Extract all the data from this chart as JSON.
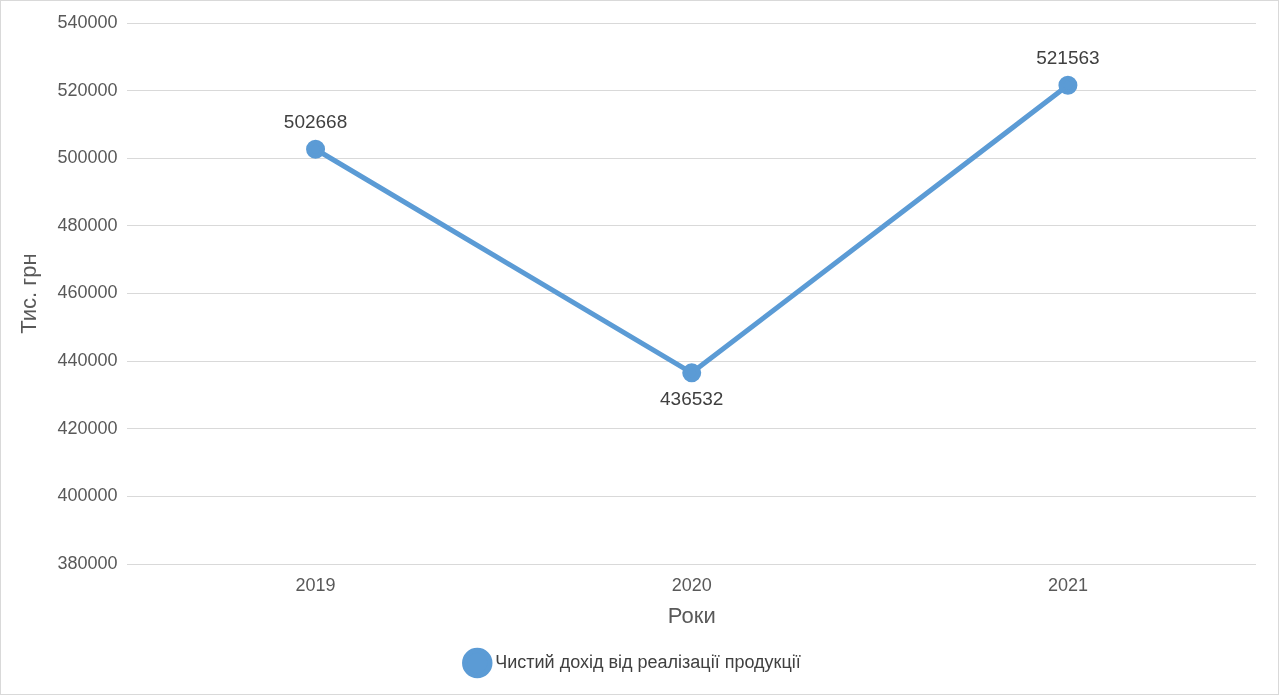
{
  "chart_data": {
    "type": "line",
    "xlabel": "Роки",
    "ylabel": "Тис. грн",
    "categories": [
      "2019",
      "2020",
      "2021"
    ],
    "series": [
      {
        "name": "Чистий дохід від реалізації продукції",
        "color": "#5b9bd5",
        "values": [
          502668,
          436532,
          521563
        ]
      }
    ],
    "ylim": [
      380000,
      540000
    ],
    "yticks": [
      380000,
      400000,
      420000,
      440000,
      460000,
      480000,
      500000,
      520000,
      540000
    ],
    "grid": "y",
    "legend": "bottom",
    "marker": "circle",
    "line_style": "solid",
    "data_labels": true
  }
}
